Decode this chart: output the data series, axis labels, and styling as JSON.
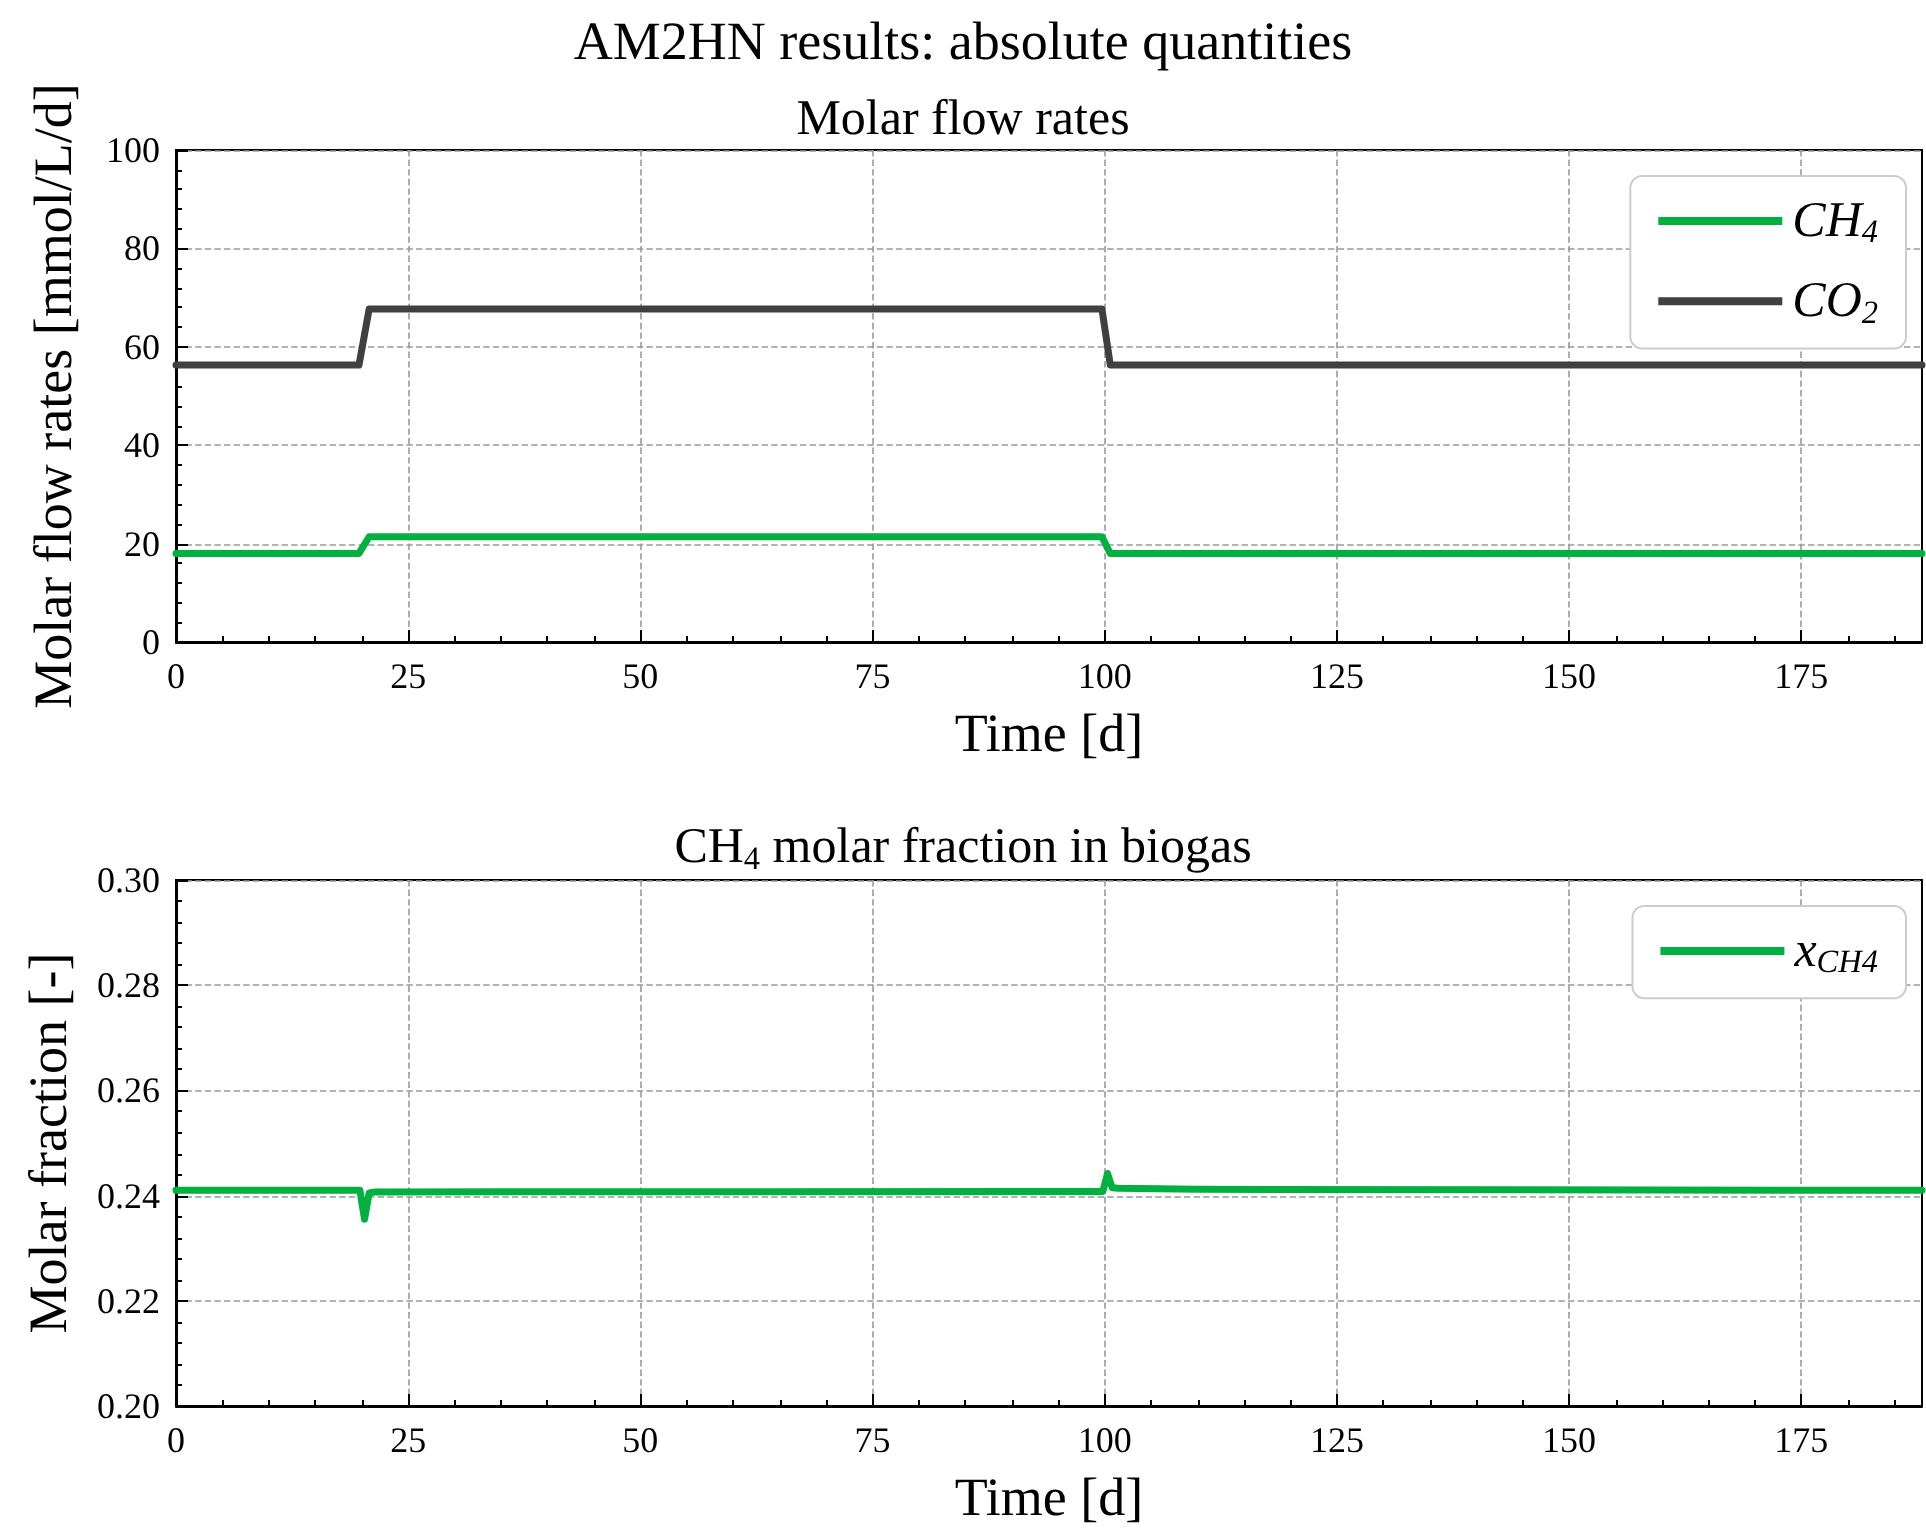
{
  "chart_data": [
    {
      "type": "line",
      "title": "AM2HN results: absolute quantities",
      "subtitle": "Molar flow rates",
      "xlabel": "Time [d]",
      "ylabel": "Molar flow rates [mmol/L/d]",
      "xlim": [
        0,
        188
      ],
      "xticks": [
        0,
        25,
        50,
        75,
        100,
        125,
        150,
        175
      ],
      "ylim": [
        0,
        100
      ],
      "yticks": [
        0,
        20,
        40,
        60,
        80,
        100
      ],
      "grid": true,
      "legend": "top right",
      "marker": "none",
      "series": [
        {
          "name": "CH$_{4}$",
          "color": "#00b140",
          "x": [
            0,
            19.7,
            20.8,
            99.7,
            100.6,
            188
          ],
          "values": [
            18.0,
            18.0,
            21.4,
            21.4,
            18.0,
            18.0
          ]
        },
        {
          "name": "CO$_{2}$",
          "color": "#404040",
          "x": [
            0,
            19.7,
            20.8,
            99.7,
            100.6,
            188
          ],
          "values": [
            56.3,
            56.3,
            67.7,
            67.7,
            56.3,
            56.3
          ]
        }
      ]
    },
    {
      "type": "line",
      "title": "CH$_{4}$ molar fraction in biogas",
      "xlabel": "Time [d]",
      "ylabel": "Molar fraction [-]",
      "xlim": [
        0,
        188
      ],
      "xticks": [
        0,
        25,
        50,
        75,
        100,
        125,
        150,
        175
      ],
      "ylim": [
        0.2,
        0.3
      ],
      "yticks": [
        {
          "value": 0.2,
          "label": "0.20"
        },
        {
          "value": 0.22,
          "label": "0.22"
        },
        {
          "value": 0.24,
          "label": "0.24"
        },
        {
          "value": 0.26,
          "label": "0.26"
        },
        {
          "value": 0.28,
          "label": "0.28"
        },
        {
          "value": 0.3,
          "label": "0.30"
        }
      ],
      "grid": true,
      "legend": "top right",
      "marker": "none",
      "series": [
        {
          "name": "x$_{CH4}$",
          "color": "#00b140",
          "x": [
            0,
            19.8,
            20.3,
            20.8,
            21.5,
            99.8,
            100.3,
            100.8,
            101.5,
            110,
            188
          ],
          "values": [
            0.241,
            0.241,
            0.2355,
            0.2405,
            0.2407,
            0.2408,
            0.2442,
            0.2415,
            0.2414,
            0.2412,
            0.241
          ]
        }
      ]
    }
  ]
}
